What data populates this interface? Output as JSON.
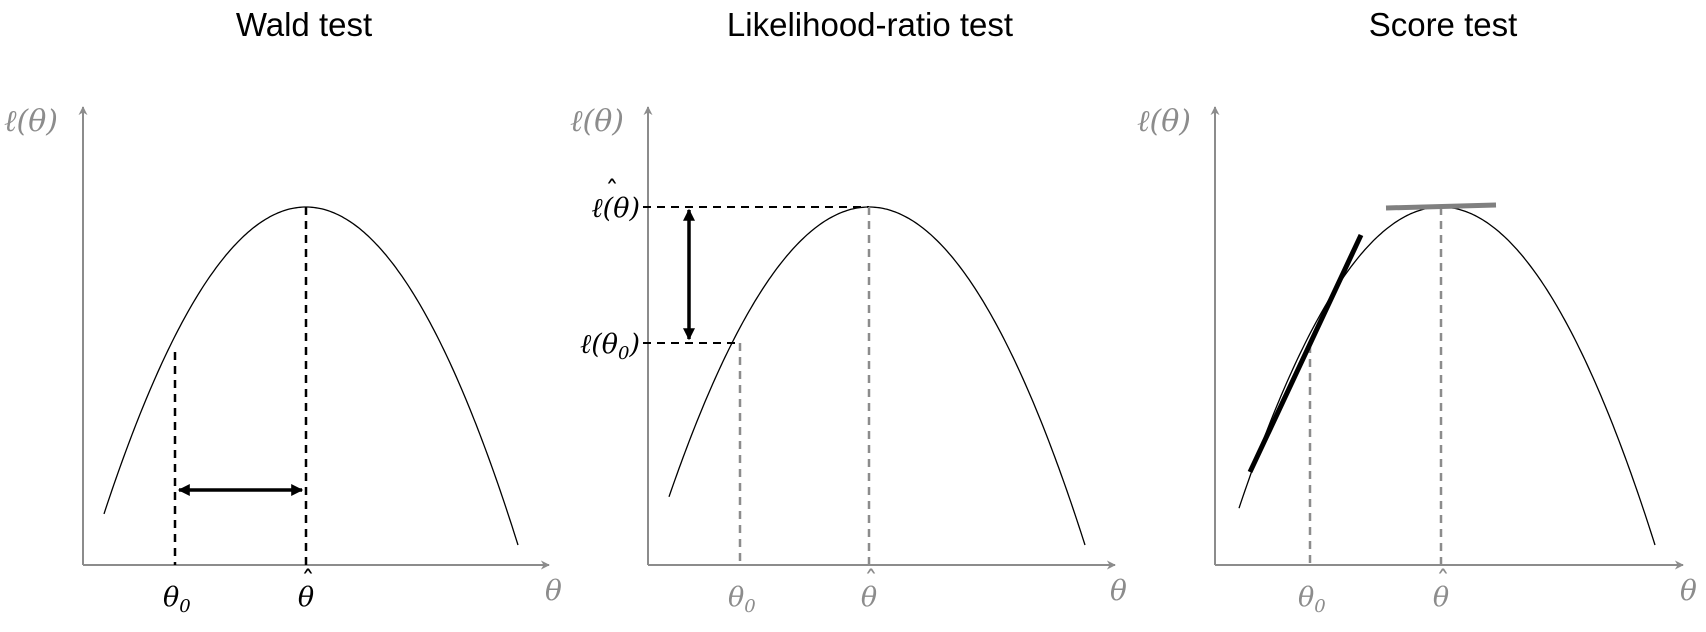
{
  "panels": [
    {
      "id": "wald",
      "title": "Wald test",
      "y_axis_label": "ℓ(θ)",
      "x_axis_label": "θ",
      "tick_theta0": "θ",
      "tick_theta0_sub": "0",
      "tick_thetahat": "θ",
      "tick_color": "#000000",
      "marker_color": "#000000"
    },
    {
      "id": "lr",
      "title": "Likelihood-ratio test",
      "y_axis_label": "ℓ(θ)",
      "x_axis_label": "θ",
      "tick_theta0": "θ",
      "tick_theta0_sub": "0",
      "tick_thetahat": "θ",
      "level_hat_label": "ℓ(θ)",
      "level_theta0_label": "ℓ(θ",
      "level_theta0_sub": "0",
      "level_theta0_close": ")",
      "tick_color": "#8c8c8c",
      "marker_color": "#8c8c8c"
    },
    {
      "id": "score",
      "title": "Score test",
      "y_axis_label": "ℓ(θ)",
      "x_axis_label": "θ",
      "tick_theta0": "θ",
      "tick_theta0_sub": "0",
      "tick_thetahat": "θ",
      "tick_color": "#8c8c8c",
      "marker_color": "#8c8c8c"
    }
  ],
  "colors": {
    "axis": "#8c8c8c",
    "curve": "#000000",
    "emphasis": "#000000",
    "flat_tangent": "#808080"
  }
}
